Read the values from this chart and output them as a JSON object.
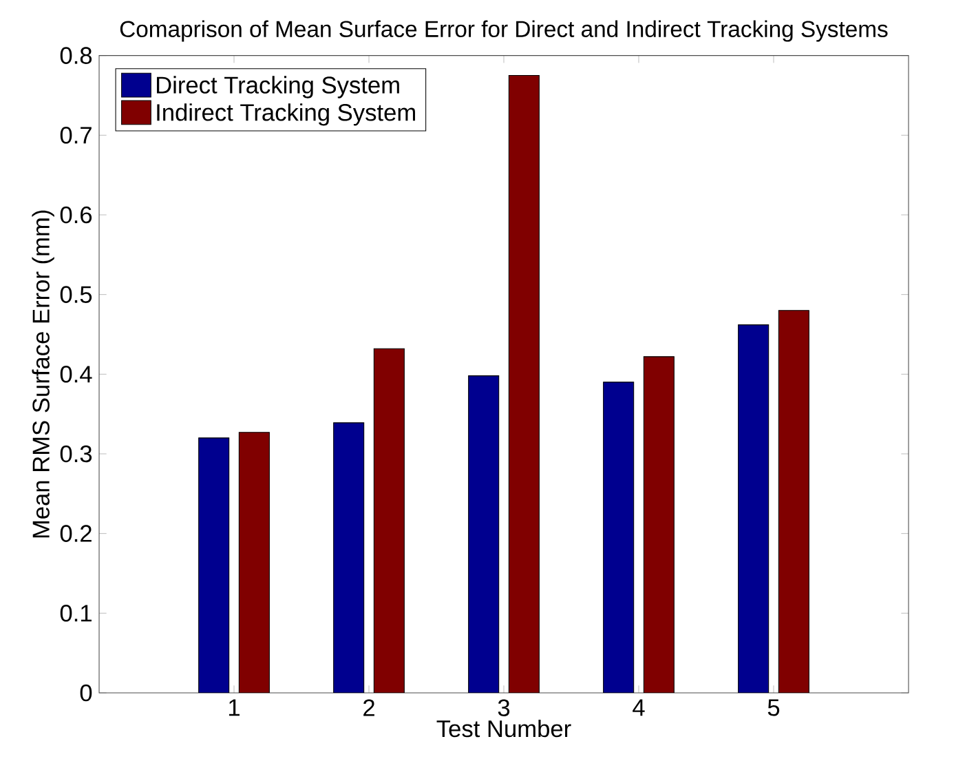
{
  "chart_data": {
    "type": "bar",
    "title": "Comaprison of Mean Surface Error for Direct and Indirect Tracking Systems",
    "xlabel": "Test Number",
    "ylabel": "Mean RMS Surface Error (mm)",
    "categories": [
      "1",
      "2",
      "3",
      "4",
      "5"
    ],
    "series": [
      {
        "name": "Direct Tracking System",
        "color": "#00008f",
        "values": [
          0.32,
          0.339,
          0.398,
          0.39,
          0.462
        ]
      },
      {
        "name": "Indirect Tracking System",
        "color": "#800000",
        "values": [
          0.327,
          0.432,
          0.775,
          0.422,
          0.48
        ]
      }
    ],
    "ylim": [
      0,
      0.8
    ],
    "yticks": [
      0,
      0.1,
      0.2,
      0.3,
      0.4,
      0.5,
      0.6,
      0.7,
      0.8
    ],
    "legend": "top left",
    "grid": false
  }
}
